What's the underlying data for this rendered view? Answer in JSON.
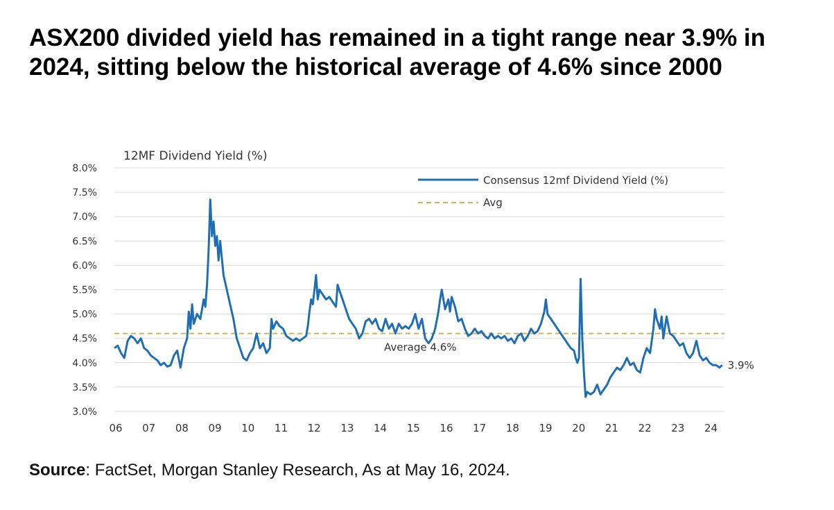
{
  "headline": "ASX200 divided yield has remained in a tight range near 3.9% in 2024, sitting below the historical average of 4.6% since 2000",
  "source": {
    "label": "Source",
    "text": ": FactSet, Morgan Stanley Research, As at May 16, 2024."
  },
  "colors": {
    "series": "#1f6db3",
    "avg": "#c9b458",
    "grid": "#d9d9d9"
  },
  "chart_data": {
    "type": "line",
    "title": "12MF Dividend Yield (%)",
    "ylim": [
      3.0,
      8.0
    ],
    "xlim": [
      2006.0,
      2024.45
    ],
    "yticks": [
      {
        "value": 3.0,
        "label": "3.0%"
      },
      {
        "value": 3.5,
        "label": "3.5%"
      },
      {
        "value": 4.0,
        "label": "4.0%"
      },
      {
        "value": 4.5,
        "label": "4.5%"
      },
      {
        "value": 5.0,
        "label": "5.0%"
      },
      {
        "value": 5.5,
        "label": "5.5%"
      },
      {
        "value": 6.0,
        "label": "6.0%"
      },
      {
        "value": 6.5,
        "label": "6.5%"
      },
      {
        "value": 7.0,
        "label": "7.0%"
      },
      {
        "value": 7.5,
        "label": "7.5%"
      },
      {
        "value": 8.0,
        "label": "8.0%"
      }
    ],
    "xticks": [
      {
        "value": 2006,
        "label": "06"
      },
      {
        "value": 2007,
        "label": "07"
      },
      {
        "value": 2008,
        "label": "08"
      },
      {
        "value": 2009,
        "label": "09"
      },
      {
        "value": 2010,
        "label": "10"
      },
      {
        "value": 2011,
        "label": "11"
      },
      {
        "value": 2012,
        "label": "12"
      },
      {
        "value": 2013,
        "label": "13"
      },
      {
        "value": 2014,
        "label": "14"
      },
      {
        "value": 2015,
        "label": "15"
      },
      {
        "value": 2016,
        "label": "16"
      },
      {
        "value": 2017,
        "label": "17"
      },
      {
        "value": 2018,
        "label": "18"
      },
      {
        "value": 2019,
        "label": "19"
      },
      {
        "value": 2020,
        "label": "20"
      },
      {
        "value": 2021,
        "label": "21"
      },
      {
        "value": 2022,
        "label": "22"
      },
      {
        "value": 2023,
        "label": "23"
      },
      {
        "value": 2024,
        "label": "24"
      }
    ],
    "grid": true,
    "legend_position": "top-right",
    "series": [
      {
        "name": "Consensus 12mf Dividend Yield (%)",
        "style": "solid",
        "points": [
          [
            2006.0,
            4.3
          ],
          [
            2006.1,
            4.35
          ],
          [
            2006.2,
            4.2
          ],
          [
            2006.3,
            4.1
          ],
          [
            2006.4,
            4.45
          ],
          [
            2006.5,
            4.55
          ],
          [
            2006.6,
            4.5
          ],
          [
            2006.7,
            4.4
          ],
          [
            2006.8,
            4.5
          ],
          [
            2006.9,
            4.3
          ],
          [
            2007.0,
            4.25
          ],
          [
            2007.1,
            4.15
          ],
          [
            2007.2,
            4.1
          ],
          [
            2007.3,
            4.05
          ],
          [
            2007.4,
            3.95
          ],
          [
            2007.5,
            4.0
          ],
          [
            2007.6,
            3.92
          ],
          [
            2007.7,
            3.95
          ],
          [
            2007.8,
            4.15
          ],
          [
            2007.9,
            4.25
          ],
          [
            2008.0,
            3.9
          ],
          [
            2008.1,
            4.3
          ],
          [
            2008.2,
            4.5
          ],
          [
            2008.25,
            5.05
          ],
          [
            2008.3,
            4.7
          ],
          [
            2008.35,
            5.2
          ],
          [
            2008.4,
            4.8
          ],
          [
            2008.5,
            5.0
          ],
          [
            2008.6,
            4.9
          ],
          [
            2008.7,
            5.3
          ],
          [
            2008.75,
            5.15
          ],
          [
            2008.8,
            5.6
          ],
          [
            2008.85,
            6.3
          ],
          [
            2008.9,
            7.35
          ],
          [
            2008.95,
            6.6
          ],
          [
            2009.0,
            6.9
          ],
          [
            2009.05,
            6.4
          ],
          [
            2009.1,
            6.6
          ],
          [
            2009.15,
            6.1
          ],
          [
            2009.2,
            6.5
          ],
          [
            2009.3,
            5.8
          ],
          [
            2009.4,
            5.5
          ],
          [
            2009.5,
            5.2
          ],
          [
            2009.6,
            4.9
          ],
          [
            2009.7,
            4.5
          ],
          [
            2009.8,
            4.3
          ],
          [
            2009.9,
            4.1
          ],
          [
            2010.0,
            4.05
          ],
          [
            2010.1,
            4.2
          ],
          [
            2010.2,
            4.3
          ],
          [
            2010.3,
            4.6
          ],
          [
            2010.4,
            4.3
          ],
          [
            2010.5,
            4.4
          ],
          [
            2010.6,
            4.2
          ],
          [
            2010.7,
            4.3
          ],
          [
            2010.75,
            4.9
          ],
          [
            2010.8,
            4.7
          ],
          [
            2010.9,
            4.85
          ],
          [
            2011.0,
            4.75
          ],
          [
            2011.1,
            4.7
          ],
          [
            2011.2,
            4.55
          ],
          [
            2011.3,
            4.5
          ],
          [
            2011.4,
            4.45
          ],
          [
            2011.5,
            4.5
          ],
          [
            2011.6,
            4.45
          ],
          [
            2011.7,
            4.5
          ],
          [
            2011.8,
            4.55
          ],
          [
            2011.85,
            4.75
          ],
          [
            2011.9,
            5.05
          ],
          [
            2011.95,
            5.3
          ],
          [
            2012.0,
            5.2
          ],
          [
            2012.05,
            5.5
          ],
          [
            2012.1,
            5.8
          ],
          [
            2012.15,
            5.3
          ],
          [
            2012.2,
            5.5
          ],
          [
            2012.3,
            5.4
          ],
          [
            2012.4,
            5.3
          ],
          [
            2012.5,
            5.35
          ],
          [
            2012.6,
            5.25
          ],
          [
            2012.7,
            5.15
          ],
          [
            2012.75,
            5.6
          ],
          [
            2012.8,
            5.5
          ],
          [
            2012.9,
            5.3
          ],
          [
            2013.0,
            5.1
          ],
          [
            2013.1,
            4.9
          ],
          [
            2013.2,
            4.8
          ],
          [
            2013.3,
            4.7
          ],
          [
            2013.4,
            4.5
          ],
          [
            2013.5,
            4.6
          ],
          [
            2013.6,
            4.85
          ],
          [
            2013.7,
            4.9
          ],
          [
            2013.8,
            4.8
          ],
          [
            2013.9,
            4.9
          ],
          [
            2014.0,
            4.7
          ],
          [
            2014.1,
            4.65
          ],
          [
            2014.2,
            4.9
          ],
          [
            2014.3,
            4.7
          ],
          [
            2014.4,
            4.8
          ],
          [
            2014.5,
            4.6
          ],
          [
            2014.6,
            4.8
          ],
          [
            2014.7,
            4.7
          ],
          [
            2014.8,
            4.75
          ],
          [
            2014.9,
            4.7
          ],
          [
            2015.0,
            4.8
          ],
          [
            2015.1,
            5.0
          ],
          [
            2015.2,
            4.7
          ],
          [
            2015.3,
            4.9
          ],
          [
            2015.4,
            4.5
          ],
          [
            2015.5,
            4.4
          ],
          [
            2015.6,
            4.5
          ],
          [
            2015.7,
            4.7
          ],
          [
            2015.8,
            5.05
          ],
          [
            2015.85,
            5.3
          ],
          [
            2015.9,
            5.5
          ],
          [
            2015.95,
            5.3
          ],
          [
            2016.0,
            5.1
          ],
          [
            2016.1,
            5.3
          ],
          [
            2016.15,
            5.05
          ],
          [
            2016.2,
            5.35
          ],
          [
            2016.3,
            5.15
          ],
          [
            2016.4,
            4.85
          ],
          [
            2016.5,
            4.9
          ],
          [
            2016.6,
            4.7
          ],
          [
            2016.7,
            4.55
          ],
          [
            2016.8,
            4.6
          ],
          [
            2016.9,
            4.7
          ],
          [
            2017.0,
            4.6
          ],
          [
            2017.1,
            4.65
          ],
          [
            2017.2,
            4.55
          ],
          [
            2017.3,
            4.5
          ],
          [
            2017.4,
            4.6
          ],
          [
            2017.5,
            4.5
          ],
          [
            2017.6,
            4.55
          ],
          [
            2017.7,
            4.5
          ],
          [
            2017.8,
            4.55
          ],
          [
            2017.9,
            4.45
          ],
          [
            2018.0,
            4.5
          ],
          [
            2018.1,
            4.4
          ],
          [
            2018.2,
            4.55
          ],
          [
            2018.3,
            4.6
          ],
          [
            2018.4,
            4.45
          ],
          [
            2018.5,
            4.55
          ],
          [
            2018.6,
            4.7
          ],
          [
            2018.7,
            4.6
          ],
          [
            2018.8,
            4.65
          ],
          [
            2018.9,
            4.8
          ],
          [
            2019.0,
            5.05
          ],
          [
            2019.05,
            5.3
          ],
          [
            2019.1,
            5.0
          ],
          [
            2019.2,
            4.9
          ],
          [
            2019.3,
            4.8
          ],
          [
            2019.4,
            4.7
          ],
          [
            2019.5,
            4.6
          ],
          [
            2019.6,
            4.5
          ],
          [
            2019.7,
            4.4
          ],
          [
            2019.8,
            4.3
          ],
          [
            2019.9,
            4.25
          ],
          [
            2019.95,
            4.1
          ],
          [
            2020.0,
            4.0
          ],
          [
            2020.05,
            4.1
          ],
          [
            2020.1,
            5.72
          ],
          [
            2020.15,
            4.5
          ],
          [
            2020.2,
            3.8
          ],
          [
            2020.25,
            3.3
          ],
          [
            2020.3,
            3.4
          ],
          [
            2020.4,
            3.35
          ],
          [
            2020.5,
            3.4
          ],
          [
            2020.6,
            3.55
          ],
          [
            2020.7,
            3.35
          ],
          [
            2020.8,
            3.45
          ],
          [
            2020.9,
            3.55
          ],
          [
            2021.0,
            3.7
          ],
          [
            2021.1,
            3.8
          ],
          [
            2021.2,
            3.9
          ],
          [
            2021.3,
            3.85
          ],
          [
            2021.4,
            3.95
          ],
          [
            2021.5,
            4.1
          ],
          [
            2021.6,
            3.95
          ],
          [
            2021.7,
            4.0
          ],
          [
            2021.8,
            3.85
          ],
          [
            2021.9,
            3.8
          ],
          [
            2022.0,
            4.1
          ],
          [
            2022.1,
            4.3
          ],
          [
            2022.2,
            4.2
          ],
          [
            2022.3,
            4.7
          ],
          [
            2022.35,
            5.1
          ],
          [
            2022.4,
            4.9
          ],
          [
            2022.5,
            4.7
          ],
          [
            2022.55,
            4.95
          ],
          [
            2022.6,
            4.5
          ],
          [
            2022.7,
            4.95
          ],
          [
            2022.8,
            4.6
          ],
          [
            2022.9,
            4.55
          ],
          [
            2023.0,
            4.45
          ],
          [
            2023.1,
            4.35
          ],
          [
            2023.2,
            4.4
          ],
          [
            2023.3,
            4.2
          ],
          [
            2023.4,
            4.1
          ],
          [
            2023.5,
            4.2
          ],
          [
            2023.6,
            4.45
          ],
          [
            2023.7,
            4.15
          ],
          [
            2023.8,
            4.05
          ],
          [
            2023.9,
            4.1
          ],
          [
            2024.0,
            4.0
          ],
          [
            2024.1,
            3.95
          ],
          [
            2024.2,
            3.95
          ],
          [
            2024.3,
            3.9
          ],
          [
            2024.38,
            3.95
          ]
        ],
        "end_label": "3.9%"
      },
      {
        "name": "Avg",
        "style": "dashed",
        "value": 4.6
      }
    ],
    "annotations": [
      {
        "text": "Average 4.6%",
        "x": 2015.0,
        "y": 4.3
      }
    ]
  }
}
